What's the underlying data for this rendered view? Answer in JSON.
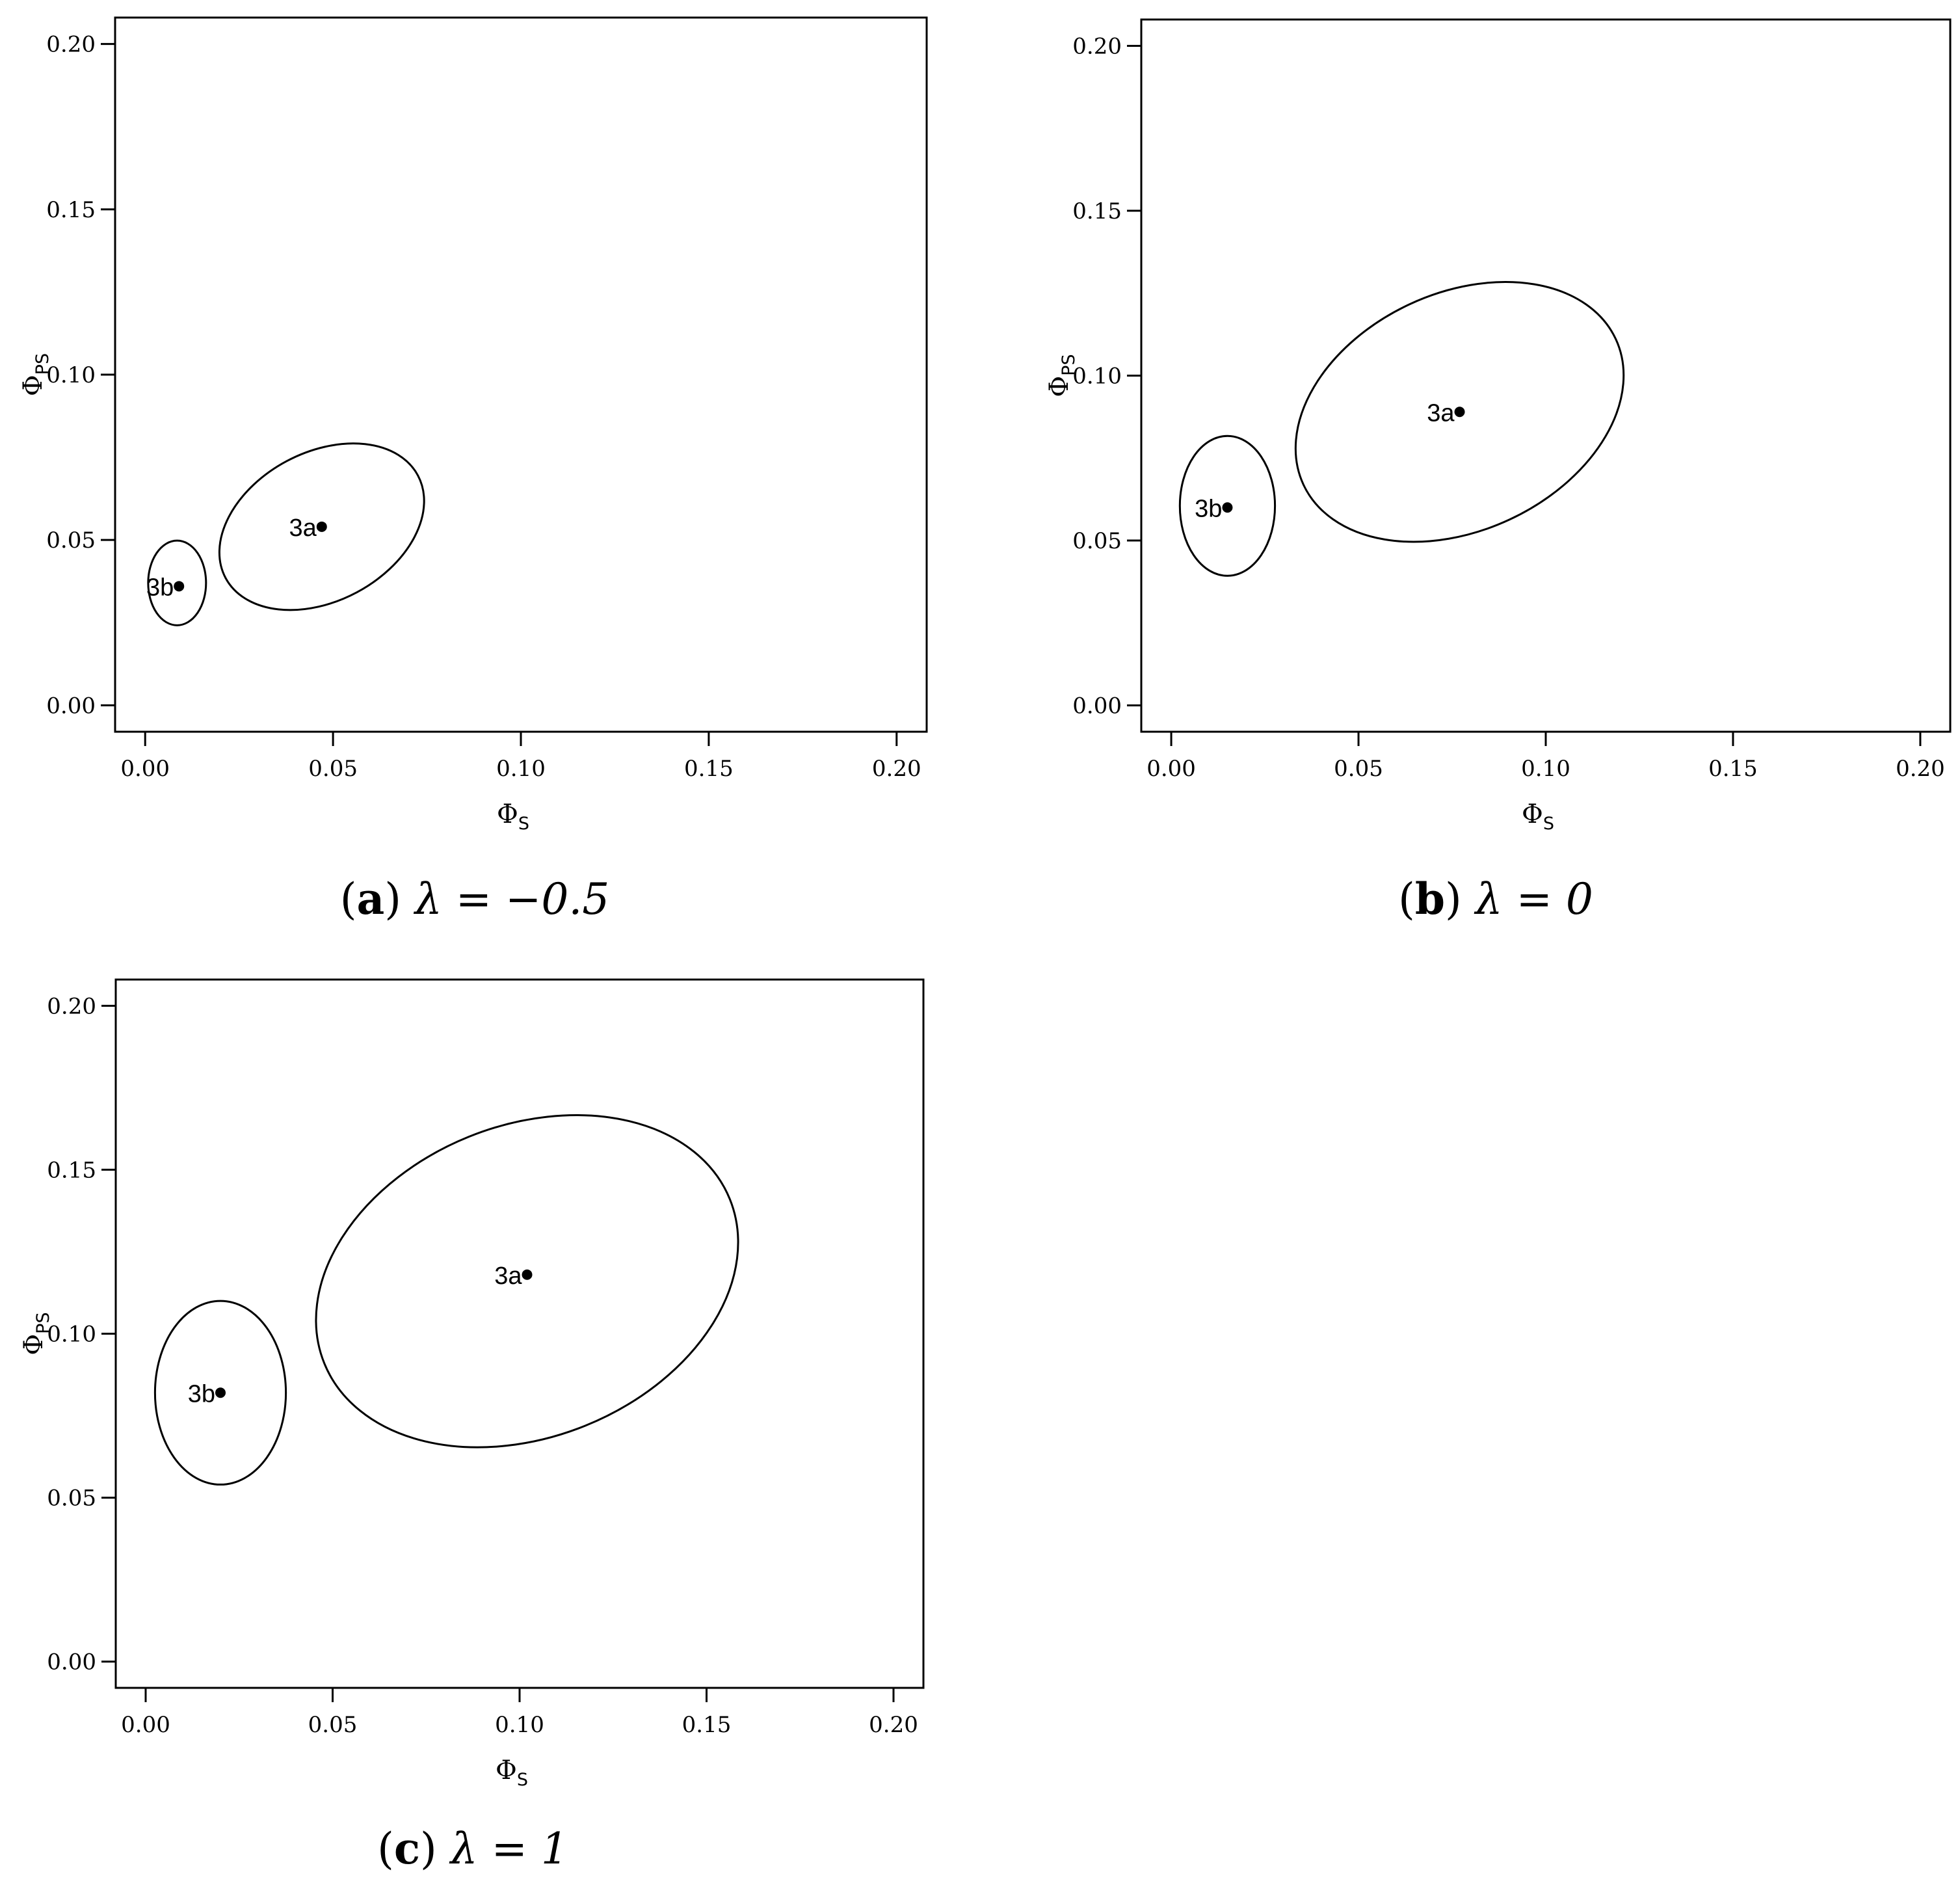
{
  "chart_data": [
    {
      "type": "scatter",
      "panel": "a",
      "caption": {
        "letter": "a",
        "math": "λ = −0.5"
      },
      "xlabel": {
        "symbol": "Φ",
        "sub": "S"
      },
      "ylabel": {
        "symbol": "Φ",
        "sub": "PS"
      },
      "xlim": [
        -0.008,
        0.208
      ],
      "ylim": [
        -0.008,
        0.208
      ],
      "xticks": [
        "0.00",
        "0.05",
        "0.10",
        "0.15",
        "0.20"
      ],
      "yticks": [
        "0.00",
        "0.05",
        "0.10",
        "0.15",
        "0.20"
      ],
      "points": [
        {
          "label": "3a",
          "x": 0.047,
          "y": 0.054
        },
        {
          "label": "3b",
          "x": 0.009,
          "y": 0.036
        }
      ],
      "ellipses": [
        {
          "point": "3a",
          "cx": 0.047,
          "cy": 0.054,
          "rx": 0.029,
          "ry": 0.0225,
          "angle": 28
        },
        {
          "point": "3b",
          "cx": 0.0085,
          "cy": 0.037,
          "rx": 0.0077,
          "ry": 0.0128,
          "angle": 0
        }
      ]
    },
    {
      "type": "scatter",
      "panel": "b",
      "caption": {
        "letter": "b",
        "math": "λ = 0"
      },
      "xlabel": {
        "symbol": "Φ",
        "sub": "S"
      },
      "ylabel": {
        "symbol": "Φ",
        "sub": "PS"
      },
      "xlim": [
        -0.008,
        0.208
      ],
      "ylim": [
        -0.008,
        0.208
      ],
      "xticks": [
        "0.00",
        "0.05",
        "0.10",
        "0.15",
        "0.20"
      ],
      "yticks": [
        "0.00",
        "0.05",
        "0.10",
        "0.15",
        "0.20"
      ],
      "points": [
        {
          "label": "3a",
          "x": 0.077,
          "y": 0.089
        },
        {
          "label": "3b",
          "x": 0.015,
          "y": 0.06
        }
      ],
      "ellipses": [
        {
          "point": "3a",
          "cx": 0.077,
          "cy": 0.089,
          "rx": 0.046,
          "ry": 0.036,
          "angle": 25
        },
        {
          "point": "3b",
          "cx": 0.015,
          "cy": 0.0605,
          "rx": 0.0127,
          "ry": 0.0212,
          "angle": 0
        }
      ]
    },
    {
      "type": "scatter",
      "panel": "c",
      "caption": {
        "letter": "c",
        "math": "λ = 1"
      },
      "xlabel": {
        "symbol": "Φ",
        "sub": "S"
      },
      "ylabel": {
        "symbol": "Φ",
        "sub": "PS"
      },
      "xlim": [
        -0.008,
        0.208
      ],
      "ylim": [
        -0.008,
        0.208
      ],
      "xticks": [
        "0.00",
        "0.05",
        "0.10",
        "0.15",
        "0.20"
      ],
      "yticks": [
        "0.00",
        "0.05",
        "0.10",
        "0.15",
        "0.20"
      ],
      "points": [
        {
          "label": "3a",
          "x": 0.102,
          "y": 0.118
        },
        {
          "label": "3b",
          "x": 0.02,
          "y": 0.082
        }
      ],
      "ellipses": [
        {
          "point": "3a",
          "cx": 0.102,
          "cy": 0.116,
          "rx": 0.0585,
          "ry": 0.0475,
          "angle": 22
        },
        {
          "point": "3b",
          "cx": 0.02,
          "cy": 0.082,
          "rx": 0.0175,
          "ry": 0.028,
          "angle": 0
        }
      ]
    }
  ]
}
